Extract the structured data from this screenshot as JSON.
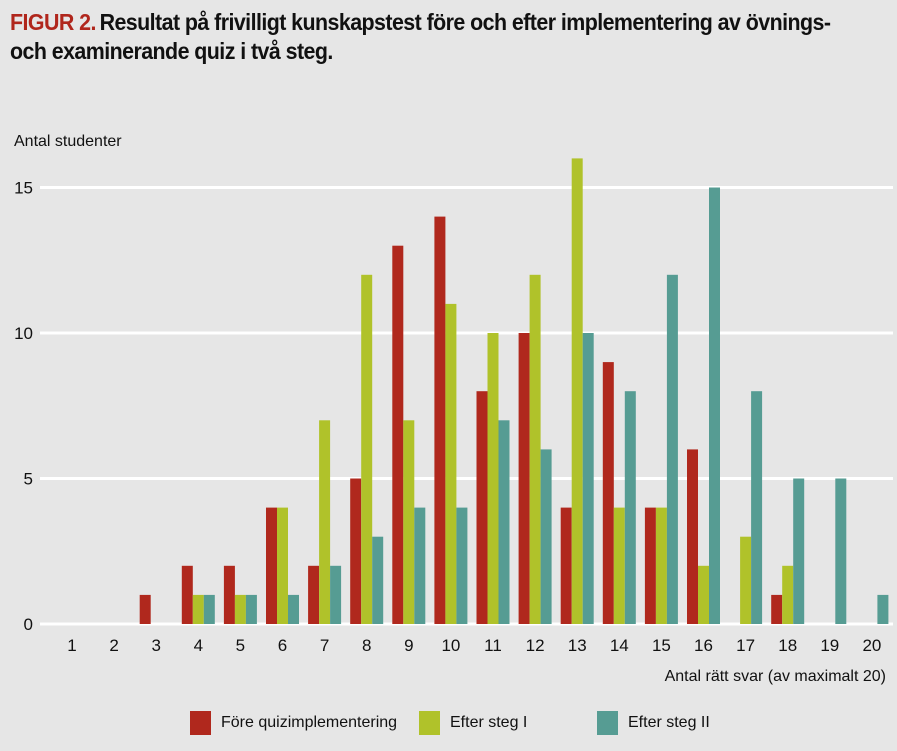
{
  "title": {
    "prefix": "FIGUR 2.",
    "text": "Resultat på frivilligt kunskapstest före och efter implementering av övnings- och examinerande quiz i två steg."
  },
  "chart_data": {
    "type": "bar",
    "title": "Resultat på frivilligt kunskapstest före och efter implementering av övnings- och examinerande quiz i två steg.",
    "xlabel": "Antal rätt svar (av maximalt 20)",
    "ylabel": "Antal studenter",
    "categories": [
      "1",
      "2",
      "3",
      "4",
      "5",
      "6",
      "7",
      "8",
      "9",
      "10",
      "11",
      "12",
      "13",
      "14",
      "15",
      "16",
      "17",
      "18",
      "19",
      "20"
    ],
    "yticks": [
      "0",
      "5",
      "10",
      "15"
    ],
    "ylim": [
      0,
      16.5
    ],
    "grid": true,
    "legend_position": "bottom",
    "series": [
      {
        "name": "Före quizimplementering",
        "color": "#b0281d",
        "values": [
          0,
          0,
          1,
          2,
          2,
          4,
          2,
          5,
          13,
          14,
          8,
          10,
          4,
          9,
          4,
          6,
          0,
          1,
          0,
          0
        ]
      },
      {
        "name": "Efter steg I",
        "color": "#b0c22a",
        "values": [
          0,
          0,
          0,
          1,
          1,
          4,
          7,
          12,
          7,
          11,
          10,
          12,
          16,
          4,
          4,
          2,
          3,
          2,
          0,
          0
        ]
      },
      {
        "name": "Efter steg II",
        "color": "#569c93",
        "values": [
          0,
          0,
          0,
          1,
          1,
          1,
          2,
          3,
          4,
          4,
          7,
          6,
          10,
          8,
          12,
          15,
          8,
          5,
          5,
          1
        ]
      }
    ]
  }
}
